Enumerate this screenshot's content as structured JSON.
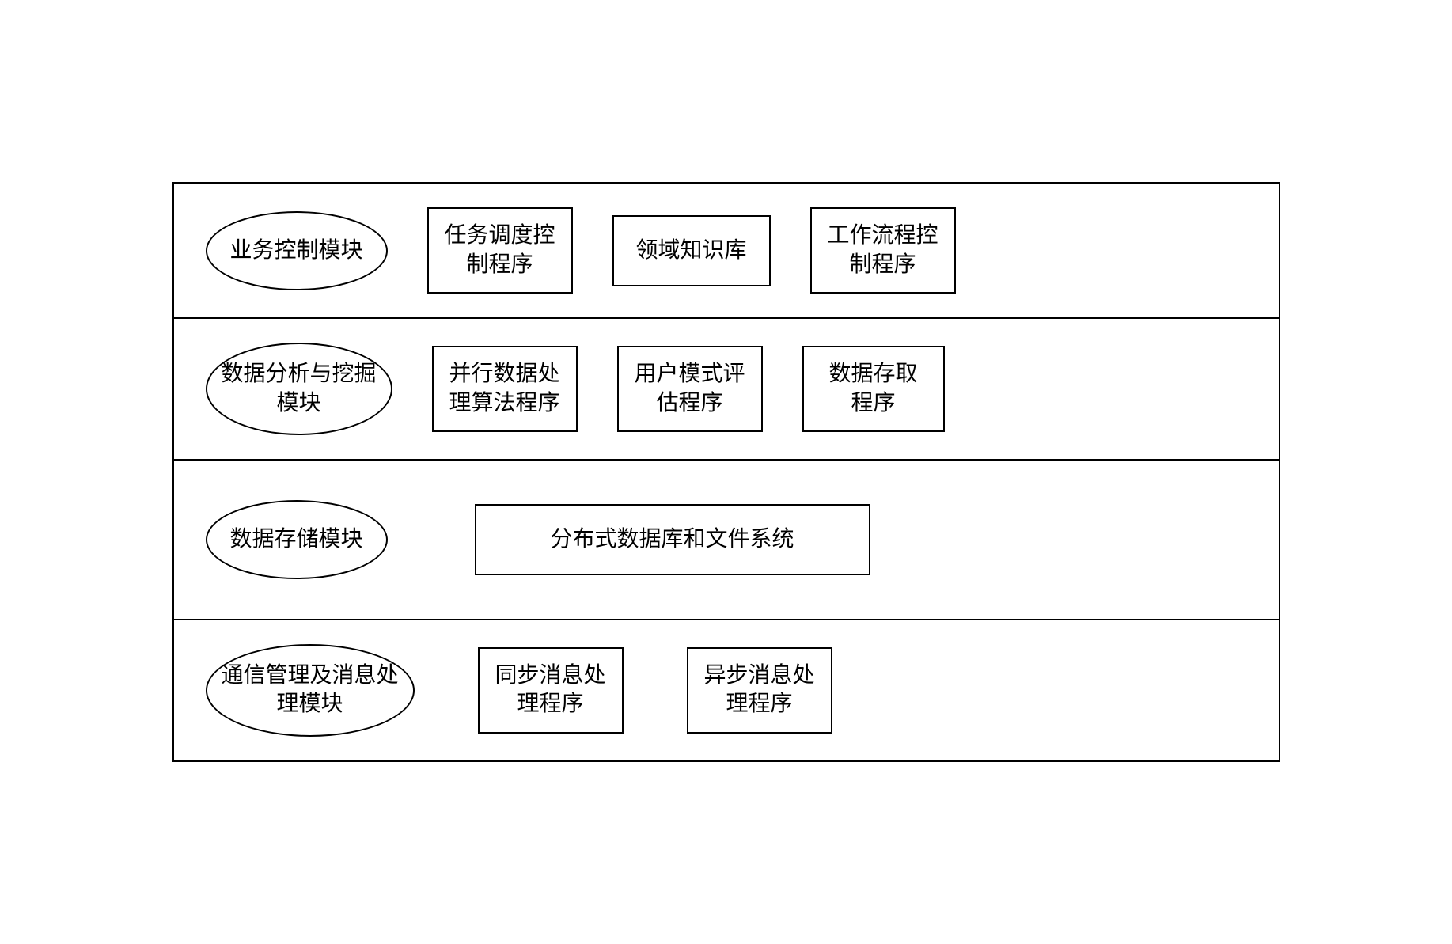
{
  "diagram": {
    "type": "layered-block-diagram",
    "background_color": "#ffffff",
    "border_color": "#000000",
    "border_width": 2,
    "font_family": "SimSun",
    "font_size": 28,
    "text_color": "#000000",
    "layers": [
      {
        "title_shape": "ellipse",
        "title": "业务控制模块",
        "components": [
          {
            "shape": "rect",
            "label": "任务调度控\n制程序"
          },
          {
            "shape": "rect",
            "label": "领域知识库"
          },
          {
            "shape": "rect",
            "label": "工作流程控\n制程序"
          }
        ]
      },
      {
        "title_shape": "ellipse",
        "title": "数据分析与挖掘\n模块",
        "components": [
          {
            "shape": "rect",
            "label": "并行数据处\n理算法程序"
          },
          {
            "shape": "rect",
            "label": "用户模式评\n估程序"
          },
          {
            "shape": "rect",
            "label": "数据存取\n程序"
          }
        ]
      },
      {
        "title_shape": "ellipse",
        "title": "数据存储模块",
        "components": [
          {
            "shape": "rect",
            "label": "分布式数据库和文件系统"
          }
        ]
      },
      {
        "title_shape": "ellipse",
        "title": "通信管理及消息处\n理模块",
        "components": [
          {
            "shape": "rect",
            "label": "同步消息处\n理程序"
          },
          {
            "shape": "rect",
            "label": "异步消息处\n理程序"
          }
        ]
      }
    ]
  }
}
